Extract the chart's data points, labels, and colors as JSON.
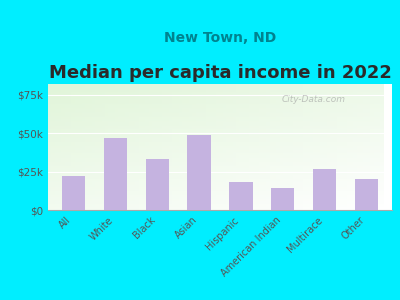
{
  "title": "Median per capita income in 2022",
  "subtitle": "New Town, ND",
  "categories": [
    "All",
    "White",
    "Black",
    "Asian",
    "Hispanic",
    "American Indian",
    "Multirace",
    "Other"
  ],
  "values": [
    22000,
    47000,
    33000,
    49000,
    18000,
    14000,
    27000,
    20000
  ],
  "bar_color": "#c5b3e0",
  "background_outer": "#00eeff",
  "title_fontsize": 13,
  "subtitle_fontsize": 10,
  "subtitle_color": "#00838f",
  "title_color": "#2a2a2a",
  "tick_color": "#555555",
  "ylim": [
    0,
    82000
  ],
  "yticks": [
    0,
    25000,
    50000,
    75000
  ],
  "ytick_labels": [
    "$0",
    "$25k",
    "$50k",
    "$75k"
  ],
  "watermark": "City-Data.com"
}
